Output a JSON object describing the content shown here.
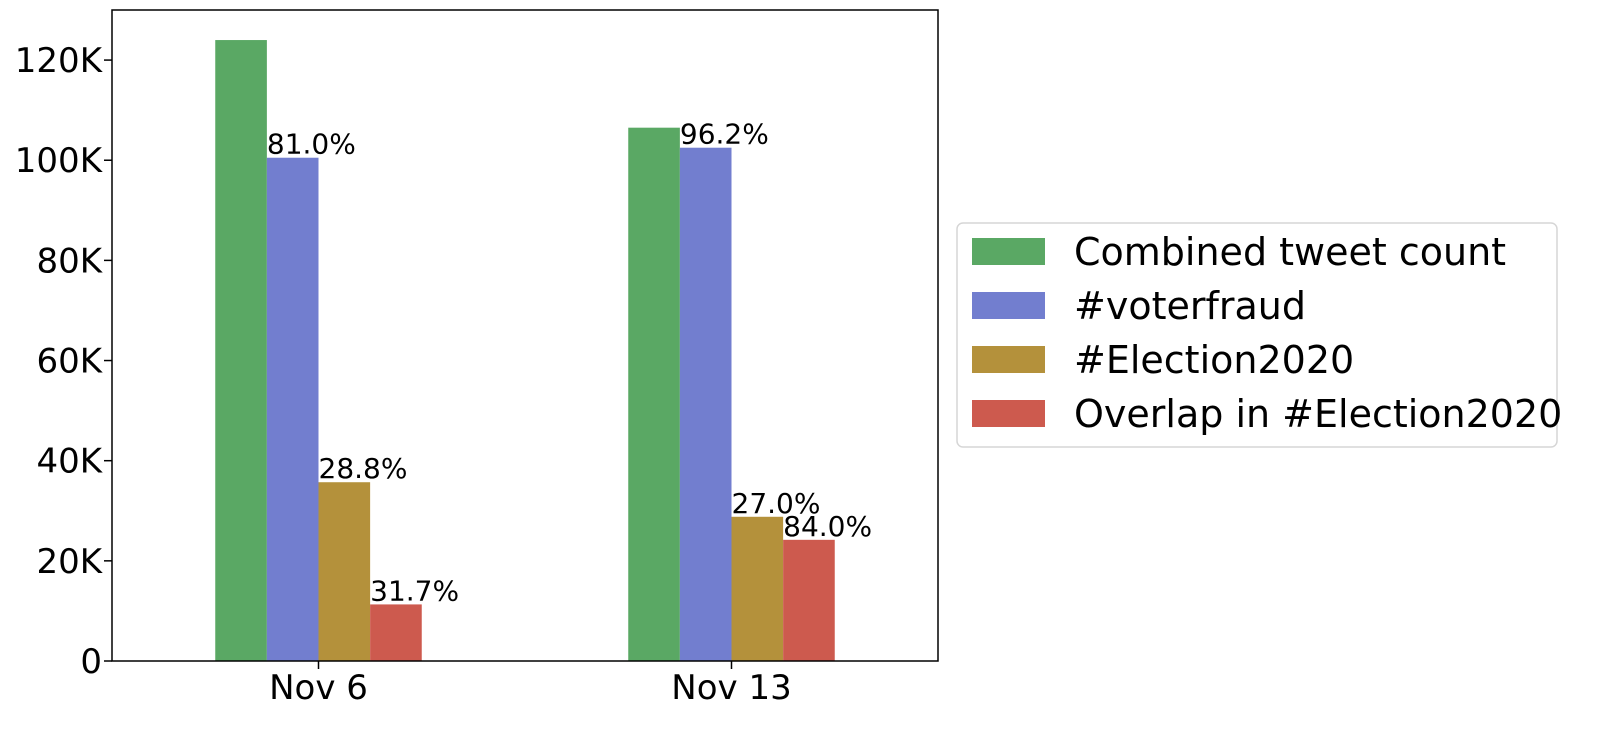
{
  "chart_data": {
    "type": "bar",
    "categories": [
      "Nov 6",
      "Nov 13"
    ],
    "series": [
      {
        "name": "Combined tweet count",
        "values": [
          124000,
          106500
        ],
        "color": "#5aa864",
        "labels": [
          "",
          ""
        ]
      },
      {
        "name": "#voterfraud",
        "values": [
          100500,
          102500
        ],
        "color": "#727ecf",
        "labels": [
          "81.0%",
          "96.2%"
        ]
      },
      {
        "name": "#Election2020",
        "values": [
          35700,
          28800
        ],
        "color": "#b4913b",
        "labels": [
          "28.8%",
          "27.0%"
        ]
      },
      {
        "name": "Overlap in #Election2020",
        "values": [
          11300,
          24200
        ],
        "color": "#cd5a4e",
        "labels": [
          "31.7%",
          "84.0%"
        ]
      }
    ],
    "ylim": [
      0,
      130000
    ],
    "yticks": [
      0,
      20000,
      40000,
      60000,
      80000,
      100000,
      120000
    ],
    "ytick_labels": [
      "0",
      "20K",
      "40K",
      "60K",
      "80K",
      "100K",
      "120K"
    ],
    "title": "",
    "xlabel": "",
    "ylabel": "",
    "legend_position": "right",
    "grid": false
  }
}
